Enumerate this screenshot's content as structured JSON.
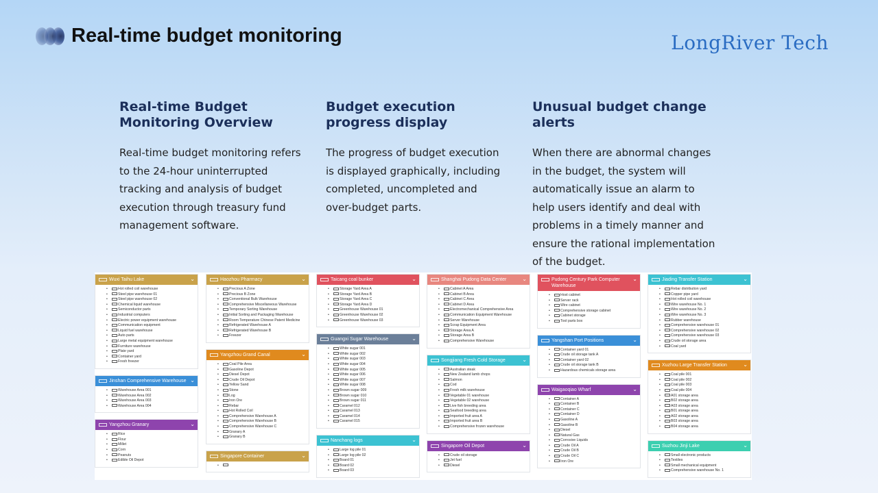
{
  "header": {
    "title": "Real-time budget monitoring",
    "brand": "LongRiver Tech"
  },
  "columns": [
    {
      "heading": "Real-time Budget Monitoring Overview",
      "body": "Real-time budget monitoring refers to the 24-hour uninterrupted tracking and analysis of budget execution through treasury fund management software."
    },
    {
      "heading": "Budget execution progress display",
      "body": "The progress of budget execution is displayed graphically, including completed, uncompleted and over-budget parts."
    },
    {
      "heading": "Unusual budget change alerts",
      "body": "When there are abnormal changes in the budget, the system will automatically issue an alarm to help users identify and deal with problems in a timely manner and ensure the rational implementation of the budget."
    }
  ],
  "screenshot": {
    "fab_label": "≡",
    "columns": [
      [
        {
          "title": "Wuxi Taihu Lake",
          "color": "#c9a24a",
          "items": [
            "Hot rolled coil warehouse",
            "Steel pipe warehouse 01",
            "Steel pipe warehouse 02",
            "Chemical liquid warehouse",
            "Semiconductor parts",
            "Industrial computers",
            "Electric power equipment warehouse",
            "Communication equipment",
            "Liquid fuel warehouse",
            "Auto parts",
            "Large metal equipment warehouse",
            "Furniture warehouse",
            "Plate yard",
            "Container yard",
            "Fresh freezer"
          ]
        },
        {
          "title": "Jinshan Comprehensive Warehouse",
          "color": "#3a8fd8",
          "items": [
            "Warehouse Area 001",
            "Warehouse Area 002",
            "Warehouse Area 003",
            "Warehouse Area 004"
          ]
        },
        {
          "title": "Yangzhou Granary",
          "color": "#8e44ad",
          "items": [
            "Rice",
            "Flour",
            "Millet",
            "Corn",
            "Peanuts",
            "Edible Oil Depot"
          ]
        }
      ],
      [
        {
          "title": "Haozhou Pharmacy",
          "color": "#c9a24a",
          "items": [
            "Precious A Zone",
            "Precious B Zone",
            "Conventional Bulk Warehouse",
            "Comprehensive Miscellaneous Warehouse",
            "Temporary Sorting Warehouse",
            "Initial Sorting and Packaging Warehouse",
            "Room Temperature Chinese Patent Medicine",
            "Refrigerated Warehouse A",
            "Refrigerated Warehouse B",
            "Freezer"
          ]
        },
        {
          "title": "Yangzhou Grand Canal",
          "color": "#e08a1e",
          "items": [
            "Coal Pile Area",
            "Gasoline Depot",
            "Diesel Depot",
            "Crude Oil Depot",
            "Yellow Sand",
            "Stone",
            "Log",
            "Iron Ore",
            "Rebar",
            "Hot Rolled Coil",
            "Comprehensive Warehouse A",
            "Comprehensive Warehouse B",
            "Comprehensive Warehouse C",
            "Granary A",
            "Granary B"
          ]
        },
        {
          "title": "Singapore Container",
          "color": "#c9a24a",
          "items": [
            ""
          ]
        }
      ],
      [
        {
          "title": "Taicang coal bunker",
          "color": "#e0525e",
          "items": [
            "Storage Yard Area A",
            "Storage Yard Area B",
            "Storage Yard Area C",
            "Storage Yard Area D",
            "Greenhouse Warehouse 01",
            "Greenhouse Warehouse 02",
            "Greenhouse Warehouse 03"
          ]
        },
        {
          "title": "Guangxi Sugar Warehouse",
          "color": "#6b7f99",
          "items": [
            "White sugar 001",
            "White sugar 002",
            "White sugar 003",
            "White sugar 004",
            "White sugar 005",
            "White sugar 006",
            "White sugar 007",
            "White sugar 008",
            "Brown sugar 009",
            "Brown sugar 010",
            "Brown sugar 011",
            "Caramel 012",
            "Caramel 013",
            "Caramel 014",
            "Caramel 015"
          ]
        },
        {
          "title": "Nanchang logs",
          "color": "#3cc2d2",
          "items": [
            "Large log pile 01",
            "Large log pile 02",
            "Board 01",
            "Board 02",
            "Board 03"
          ]
        }
      ],
      [
        {
          "title": "Shanghai Pudong Data Center",
          "color": "#e8877f",
          "items": [
            "Cabinet A Area",
            "Cabinet B Area",
            "Cabinet C Area",
            "Cabinet D Area",
            "Electromechanical Comprehensive Area",
            "Communication Equipment Warehouse",
            "Server Warehouse",
            "Scrap Equipment Area",
            "Storage Area A",
            "Storage Area B",
            "Comprehensive Warehouse"
          ]
        },
        {
          "title": "Songjiang Fresh Cold Storage",
          "color": "#3cc2d2",
          "items": [
            "Australian steak",
            "New Zealand lamb chops",
            "Salmon",
            "Cod",
            "Fresh milk warehouse",
            "Vegetable 01 warehouse",
            "Vegetable 02 warehouse",
            "Live fish breeding area",
            "Seafood breeding area",
            "Imported fruit area A",
            "Imported fruit area B",
            "Comprehensive frozen warehouse"
          ]
        },
        {
          "title": "Singapore Oil Depot",
          "color": "#8e44ad",
          "items": [
            "Crude oil storage",
            "Jet fuel",
            "Diesel"
          ]
        }
      ],
      [
        {
          "title": "Pudong Century Park Computer Warehouse",
          "color": "#e0525e",
          "items": [
            "Host cabinet",
            "Server rack",
            "Wire cabinet",
            "Comprehensive storage cabinet",
            "Cabinet storage",
            "Tool parts box"
          ]
        },
        {
          "title": "Yangshan Port Positions",
          "color": "#3a8fd8",
          "items": [
            "Container yard 01",
            "Crude oil storage tank A",
            "Container yard 02",
            "Crude oil storage tank B",
            "Hazardous chemicals storage area"
          ]
        },
        {
          "title": "Waigaoqiao Wharf",
          "color": "#8e44ad",
          "items": [
            "Container A",
            "Container B",
            "Container C",
            "Container D",
            "Gasoline A",
            "Gasoline B",
            "Diesel",
            "Natural Gas",
            "Corrosive Liquids",
            "Crude Oil A",
            "Crude Oil B",
            "Crude Oil C",
            "Iron Ore"
          ]
        }
      ],
      [
        {
          "title": "Jiading Transfer Station",
          "color": "#3cc2d2",
          "items": [
            "Rebar distribution yard",
            "Copper pipe yard",
            "Hot rolled coil warehouse",
            "Wire warehouse No. 1",
            "Wire warehouse No. 2",
            "Wire warehouse No. 3",
            "Rubber warehouse",
            "Comprehensive warehouse 01",
            "Comprehensive warehouse 02",
            "Comprehensive warehouse 03",
            "Crude oil storage area",
            "Coal yard"
          ]
        },
        {
          "title": "Xuzhou Large Transfer Station",
          "color": "#e08a1e",
          "items": [
            "Coal pile 001",
            "Coal pile 002",
            "Coal pile 003",
            "Coal pile 004",
            "A01 storage area",
            "B02 storage area",
            "A03 storage area",
            "B01 storage area",
            "A02 storage area",
            "B03 storage area",
            "B04 storage area"
          ]
        },
        {
          "title": "Suzhou Jinji Lake",
          "color": "#3ccfb0",
          "items": [
            "Small electronic products",
            "Textiles",
            "Small mechanical equipment",
            "Comprehensive warehouse No. 1"
          ]
        }
      ]
    ]
  }
}
